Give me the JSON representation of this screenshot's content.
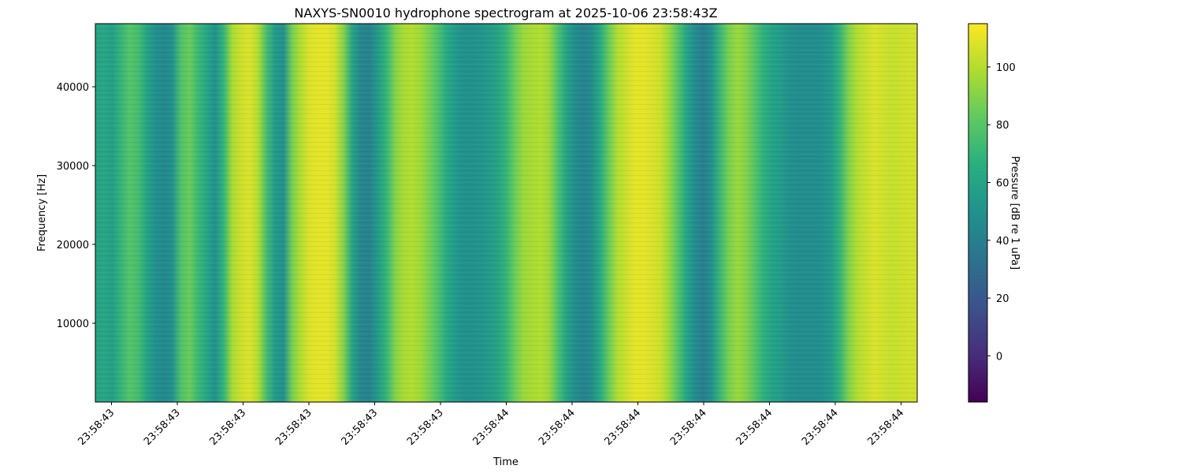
{
  "chart_data": {
    "type": "heatmap",
    "title": "NAXYS-SN0010 hydrophone spectrogram at 2025-10-06 23:58:43Z",
    "xlabel": "Time",
    "ylabel": "Frequency [Hz]",
    "x_tick_labels": [
      "23:58:43",
      "23:58:43",
      "23:58:43",
      "23:58:43",
      "23:58:43",
      "23:58:43",
      "23:58:44",
      "23:58:44",
      "23:58:44",
      "23:58:44",
      "23:58:44",
      "23:58:44",
      "23:58:44"
    ],
    "y_ticks": [
      10000,
      20000,
      30000,
      40000
    ],
    "ylim": [
      0,
      48000
    ],
    "colormap": "viridis",
    "colorbar": {
      "label": "Pressure [dB re 1 uPa]",
      "ticks": [
        0,
        20,
        40,
        60,
        80,
        100
      ],
      "range": [
        -16,
        115
      ]
    },
    "time_columns_db": [
      60,
      62,
      58,
      70,
      80,
      75,
      60,
      50,
      45,
      50,
      78,
      85,
      72,
      62,
      50,
      70,
      98,
      105,
      108,
      100,
      75,
      55,
      50,
      88,
      100,
      108,
      110,
      110,
      106,
      90,
      60,
      45,
      42,
      55,
      70,
      90,
      98,
      100,
      96,
      88,
      78,
      65,
      55,
      50,
      50,
      52,
      55,
      60,
      70,
      85,
      95,
      98,
      100,
      95,
      78,
      60,
      48,
      42,
      48,
      65,
      85,
      100,
      105,
      110,
      110,
      108,
      105,
      95,
      80,
      62,
      48,
      40,
      50,
      72,
      88,
      95,
      90,
      80,
      68,
      60,
      56,
      50,
      48,
      48,
      48,
      50,
      55,
      70,
      90,
      100,
      104,
      108,
      106,
      104,
      105,
      106,
      106
    ]
  }
}
